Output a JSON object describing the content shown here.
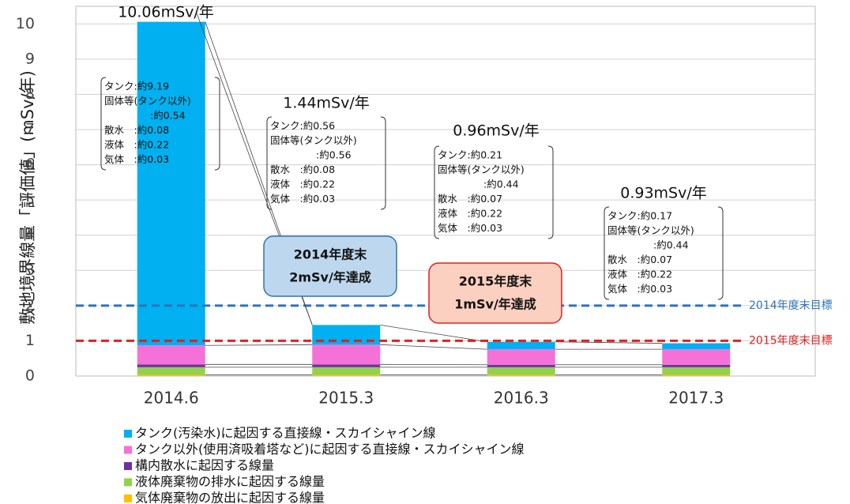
{
  "chart_data": {
    "type": "bar",
    "stacked": true,
    "y_label": "敷地境界線量「評価値」(mSv/年)",
    "categories": [
      "2014.6",
      "2015.3",
      "2016.3",
      "2017.3"
    ],
    "series": [
      {
        "name": "タンク(汚染水)に起因する直接線・スカイシャイン線",
        "color": "#00b0f0",
        "values": [
          9.19,
          0.56,
          0.21,
          0.17
        ]
      },
      {
        "name": "タンク以外(使用済吸着塔など)に起因する直接線・スカイシャイン線",
        "color": "#f472d8",
        "values": [
          0.54,
          0.56,
          0.44,
          0.44
        ]
      },
      {
        "name": "構内散水に起因する線量",
        "color": "#7030a0",
        "values": [
          0.08,
          0.08,
          0.07,
          0.07
        ]
      },
      {
        "name": "液体廃棄物の排水に起因する線量",
        "color": "#92d050",
        "values": [
          0.22,
          0.22,
          0.22,
          0.22
        ]
      },
      {
        "name": "気体廃棄物の放出に起因する線量",
        "color": "#ffc000",
        "values": [
          0.03,
          0.03,
          0.03,
          0.03
        ]
      }
    ],
    "ylim": [
      0,
      10.5
    ],
    "yticks": [
      0,
      1,
      2,
      3,
      4,
      5,
      6,
      7,
      8,
      9,
      10
    ],
    "grid": true,
    "total_labels": [
      "10.06mSv/年",
      "1.44mSv/年",
      "0.96mSv/年",
      "0.93mSv/年"
    ],
    "breakdowns": [
      [
        "タンク:約9.19",
        "固体等(タンク以外)",
        ":約0.54",
        "散水　:約0.08",
        "液体　:約0.22",
        "気体　:約0.03"
      ],
      [
        "タンク:約0.56",
        "固体等(タンク以外)",
        ":約0.56",
        "散水　:約0.08",
        "液体　:約0.22",
        "気体　:約0.03"
      ],
      [
        "タンク:約0.21",
        "固体等(タンク以外)",
        ":約0.44",
        "散水　:約0.07",
        "液体　:約0.22",
        "気体　:約0.03"
      ],
      [
        "タンク:約0.17",
        "固体等(タンク以外)",
        ":約0.44",
        "散水　:約0.07",
        "液体　:約0.22",
        "気体　:約0.03"
      ]
    ],
    "reference_lines": [
      {
        "value": 2,
        "label": "2014年度末目標",
        "color": "#2e75b6"
      },
      {
        "value": 1,
        "label": "2015年度末目標",
        "color": "#e02020"
      }
    ],
    "callouts": [
      {
        "lines": [
          "2014年度末",
          "2mSv/年達成"
        ],
        "fill": "#bdd7ee",
        "stroke": "#2e75b6"
      },
      {
        "lines": [
          "2015年度末",
          "1mSv/年達成"
        ],
        "fill": "#fbd0c0",
        "stroke": "#e02020"
      }
    ]
  }
}
